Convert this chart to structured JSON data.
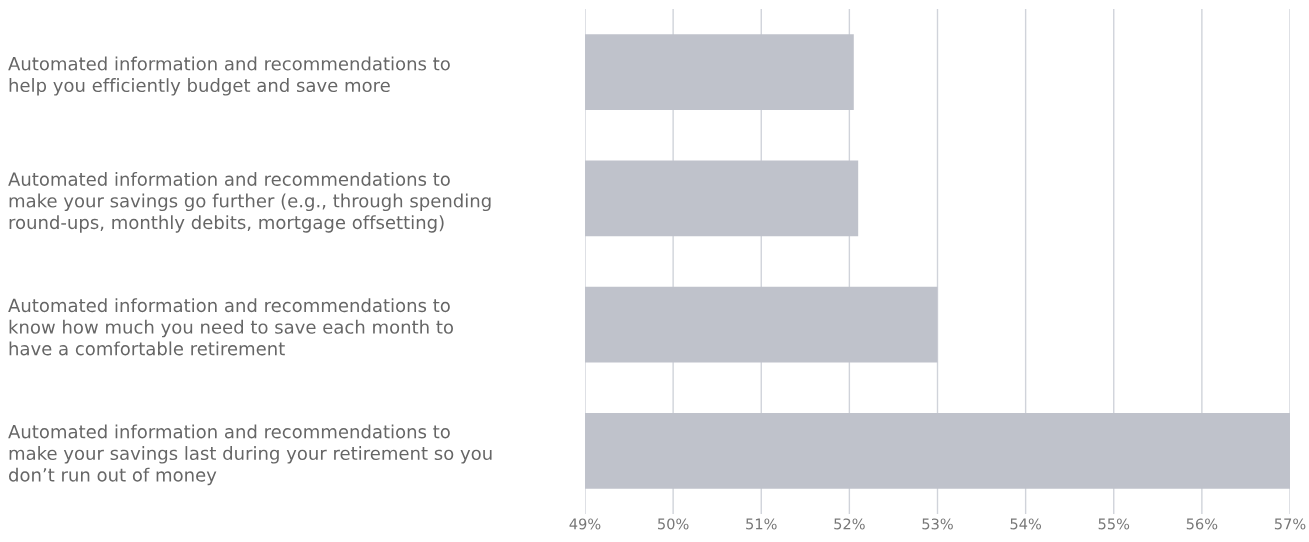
{
  "chart_data": {
    "type": "bar",
    "orientation": "horizontal",
    "categories": [
      "Automated information and recommendations to\nhelp you efficiently budget and save more",
      "Automated information and recommendations to\nmake your savings go further (e.g., through spending\nround-ups, monthly debits, mortgage offsetting)",
      "Automated information and recommendations to\nknow how much you need to save each month to\nhave a comfortable retirement",
      "Automated information and recommendations to\nmake your savings last during your retirement so you\ndon’t run out of money"
    ],
    "values": [
      52.05,
      52.1,
      53.0,
      57.0
    ],
    "color": "#bfc2cb",
    "xlim": [
      49,
      57
    ],
    "xticks": [
      {
        "value": 49,
        "label": "49%"
      },
      {
        "value": 50,
        "label": "50%"
      },
      {
        "value": 51,
        "label": "51%"
      },
      {
        "value": 52,
        "label": "52%"
      },
      {
        "value": 53,
        "label": "53%"
      },
      {
        "value": 54,
        "label": "54%"
      },
      {
        "value": 55,
        "label": "55%"
      },
      {
        "value": 56,
        "label": "56%"
      },
      {
        "value": 57,
        "label": "57%"
      }
    ],
    "grid": "x",
    "legend": false
  }
}
